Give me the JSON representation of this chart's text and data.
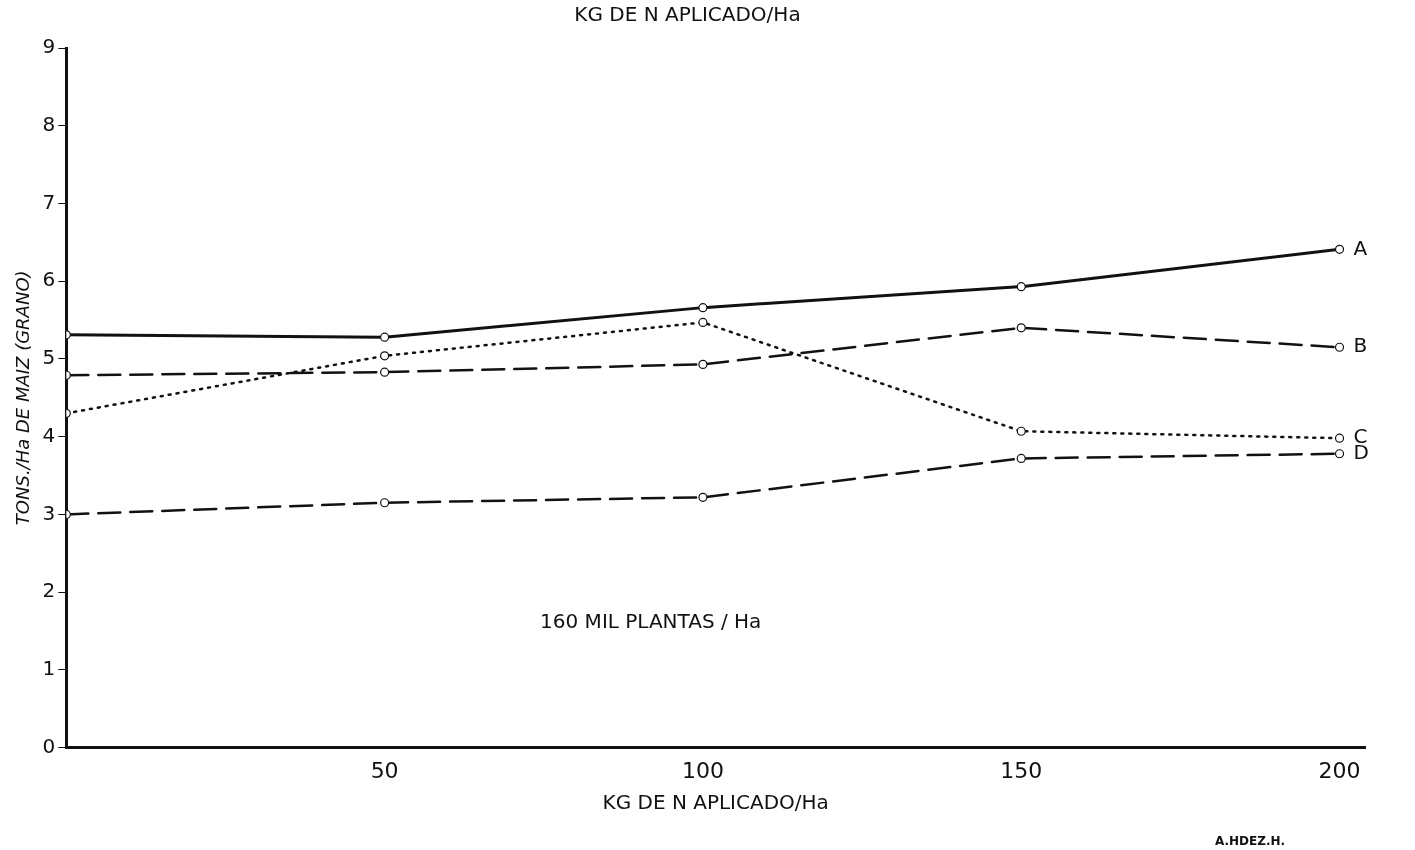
{
  "chart_data": {
    "type": "line",
    "title": "KG DE N APLICADO/Ha",
    "xlabel": "KG DE N APLICADO/Ha",
    "ylabel": "TONS./Ha DE MAIZ (GRANO)",
    "x": [
      0,
      50,
      100,
      150,
      200
    ],
    "xlim": [
      0,
      204
    ],
    "xticks": [
      50,
      100,
      150,
      200
    ],
    "ylim": [
      0,
      9
    ],
    "yticks": [
      0,
      1,
      2,
      3,
      4,
      5,
      6,
      7,
      8,
      9
    ],
    "grid": false,
    "legend": false,
    "marker": "circle",
    "series": [
      {
        "name": "A",
        "color": "#111111",
        "line_style": "solid",
        "values": [
          5.31,
          5.28,
          5.66,
          5.93,
          6.41
        ]
      },
      {
        "name": "B",
        "color": "#111111",
        "line_style": "dashed",
        "values": [
          4.79,
          4.83,
          4.93,
          5.4,
          5.15
        ]
      },
      {
        "name": "C",
        "color": "#111111",
        "line_style": "dotted",
        "values": [
          4.3,
          5.04,
          5.47,
          4.07,
          3.98
        ]
      },
      {
        "name": "D",
        "color": "#111111",
        "line_style": "dashed",
        "values": [
          3.0,
          3.15,
          3.22,
          3.72,
          3.78
        ]
      }
    ],
    "annotations": [
      "160 MIL PLANTAS / Ha",
      "A.HDEZ.H."
    ]
  }
}
